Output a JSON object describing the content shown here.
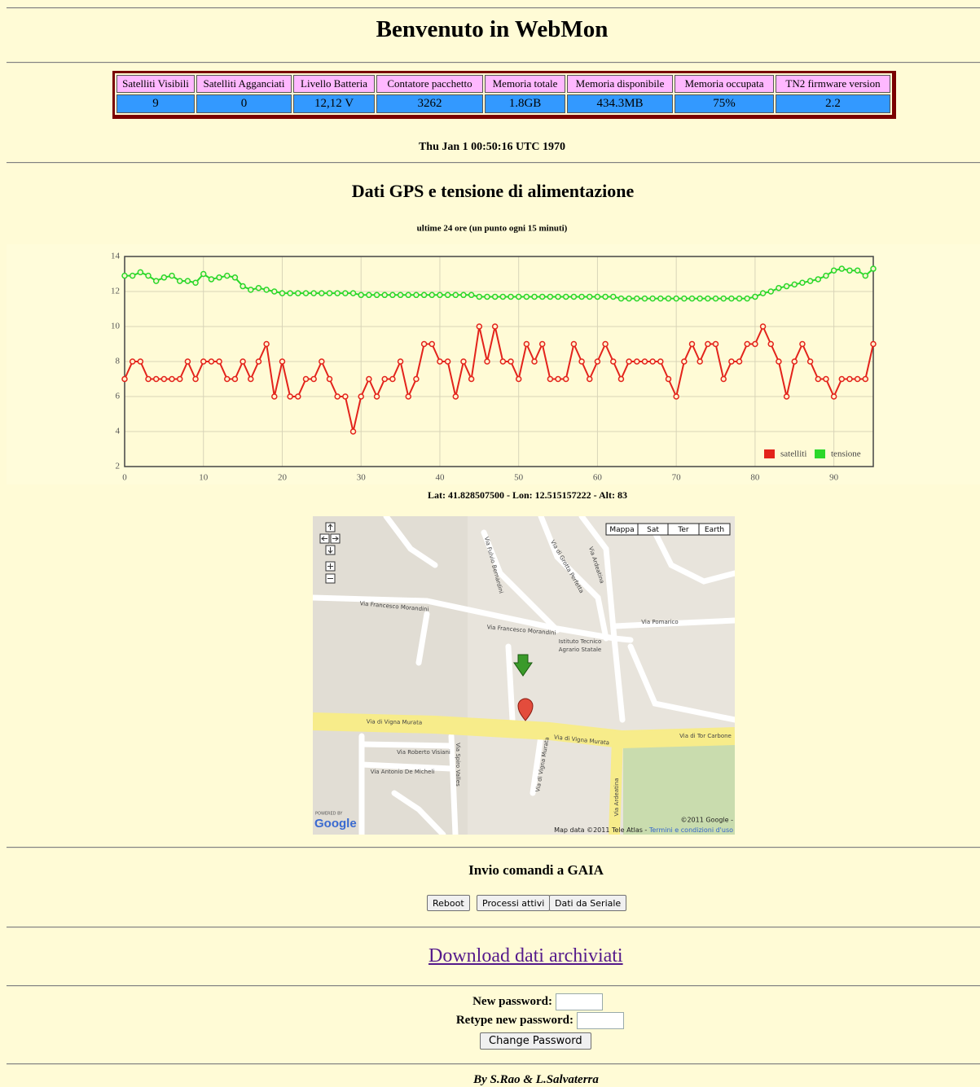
{
  "header": {
    "title": "Benvenuto in WebMon"
  },
  "table": {
    "headers": [
      "Satelliti Visibili",
      "Satelliti Agganciati",
      "Livello Batteria",
      "Contatore pacchetto",
      "Memoria totale",
      "Memoria disponibile",
      "Memoria occupata",
      "TN2 firmware version"
    ],
    "values": [
      "9",
      "0",
      "12,12 V",
      "3262",
      "1.8GB",
      "434.3MB",
      "75%",
      "2.2"
    ]
  },
  "timestamp": "Thu Jan 1 00:50:16 UTC 1970",
  "chart_heading": "Dati GPS e tensione di alimentazione",
  "chart_data": {
    "type": "line",
    "title": "ultime 24 ore (un punto ogni 15 minuti)",
    "x": [
      0,
      1,
      2,
      3,
      4,
      5,
      6,
      7,
      8,
      9,
      10,
      11,
      12,
      13,
      14,
      15,
      16,
      17,
      18,
      19,
      20,
      21,
      22,
      23,
      24,
      25,
      26,
      27,
      28,
      29,
      30,
      31,
      32,
      33,
      34,
      35,
      36,
      37,
      38,
      39,
      40,
      41,
      42,
      43,
      44,
      45,
      46,
      47,
      48,
      49,
      50,
      51,
      52,
      53,
      54,
      55,
      56,
      57,
      58,
      59,
      60,
      61,
      62,
      63,
      64,
      65,
      66,
      67,
      68,
      69,
      70,
      71,
      72,
      73,
      74,
      75,
      76,
      77,
      78,
      79,
      80,
      81,
      82,
      83,
      84,
      85,
      86,
      87,
      88,
      89,
      90,
      91,
      92,
      93,
      94,
      95
    ],
    "series": [
      {
        "name": "satelliti",
        "color": "#e3231b",
        "values": [
          7,
          8,
          8,
          7,
          7,
          7,
          7,
          7,
          8,
          7,
          8,
          8,
          8,
          7,
          7,
          8,
          7,
          8,
          9,
          6,
          8,
          6,
          6,
          7,
          7,
          8,
          7,
          6,
          6,
          4,
          6,
          7,
          6,
          7,
          7,
          8,
          6,
          7,
          9,
          9,
          8,
          8,
          6,
          8,
          7,
          10,
          8,
          10,
          8,
          8,
          7,
          9,
          8,
          9,
          7,
          7,
          7,
          9,
          8,
          7,
          8,
          9,
          8,
          7,
          8,
          8,
          8,
          8,
          8,
          7,
          6,
          8,
          9,
          8,
          9,
          9,
          7,
          8,
          8,
          9,
          9,
          10,
          9,
          8,
          6,
          8,
          9,
          8,
          7,
          7,
          6,
          7,
          7,
          7,
          7,
          9
        ]
      },
      {
        "name": "tensione",
        "color": "#2ad82a",
        "values": [
          12.9,
          12.9,
          13.1,
          12.9,
          12.6,
          12.8,
          12.9,
          12.6,
          12.6,
          12.5,
          13.0,
          12.7,
          12.8,
          12.9,
          12.8,
          12.3,
          12.1,
          12.2,
          12.1,
          12.0,
          11.9,
          11.9,
          11.9,
          11.9,
          11.9,
          11.9,
          11.9,
          11.9,
          11.9,
          11.9,
          11.8,
          11.8,
          11.8,
          11.8,
          11.8,
          11.8,
          11.8,
          11.8,
          11.8,
          11.8,
          11.8,
          11.8,
          11.8,
          11.8,
          11.8,
          11.7,
          11.7,
          11.7,
          11.7,
          11.7,
          11.7,
          11.7,
          11.7,
          11.7,
          11.7,
          11.7,
          11.7,
          11.7,
          11.7,
          11.7,
          11.7,
          11.7,
          11.7,
          11.6,
          11.6,
          11.6,
          11.6,
          11.6,
          11.6,
          11.6,
          11.6,
          11.6,
          11.6,
          11.6,
          11.6,
          11.6,
          11.6,
          11.6,
          11.6,
          11.6,
          11.7,
          11.9,
          12.0,
          12.2,
          12.3,
          12.4,
          12.5,
          12.6,
          12.7,
          12.9,
          13.2,
          13.3,
          13.2,
          13.2,
          12.9,
          13.3
        ]
      }
    ],
    "xlim": [
      0,
      95
    ],
    "xticks": [
      0,
      10,
      20,
      30,
      40,
      50,
      60,
      70,
      80,
      90
    ],
    "ylim": [
      2,
      14
    ],
    "yticks": [
      2,
      4,
      6,
      8,
      10,
      12,
      14
    ],
    "grid": true,
    "legend": "lower right"
  },
  "location": "Lat: 41.828507500 - Lon: 12.515157222 - Alt: 83",
  "map": {
    "controls": [
      "Mappa",
      "Sat",
      "Ter",
      "Earth"
    ],
    "labels": [
      "Via Francesco Morandini",
      "Via Francesco Morandini",
      "Via Fulvio Bernardini",
      "Via di Grotta Perfetta",
      "Via Ardeatina",
      "Istituto Tecnico",
      "Agrario Statale",
      "Via Pomarico",
      "Via di Vigna Murata",
      "Via di Vigna Murata",
      "Via di Tor Carbone",
      "Via Roberto Visiani",
      "Via Antonio De Micheli",
      "Via Spiro Valles",
      "Via di Vigna Murata",
      "Via Ardeatina"
    ],
    "powered_by": "POWERED BY",
    "logo": "Google",
    "copyright": "©2011 Google -",
    "attribution": "Map data ©2011 Tele Atlas - ",
    "terms": "Termini e condizioni d'uso"
  },
  "commands": {
    "title": "Invio comandi a GAIA",
    "buttons": [
      "Reboot",
      "Processi attivi",
      "Dati da Seriale"
    ]
  },
  "download": "Download dati archiviati",
  "password": {
    "new_label": "New password:",
    "retype_label": "Retype new password:",
    "button": "Change Password"
  },
  "footer": "By S.Rao & L.Salvaterra"
}
